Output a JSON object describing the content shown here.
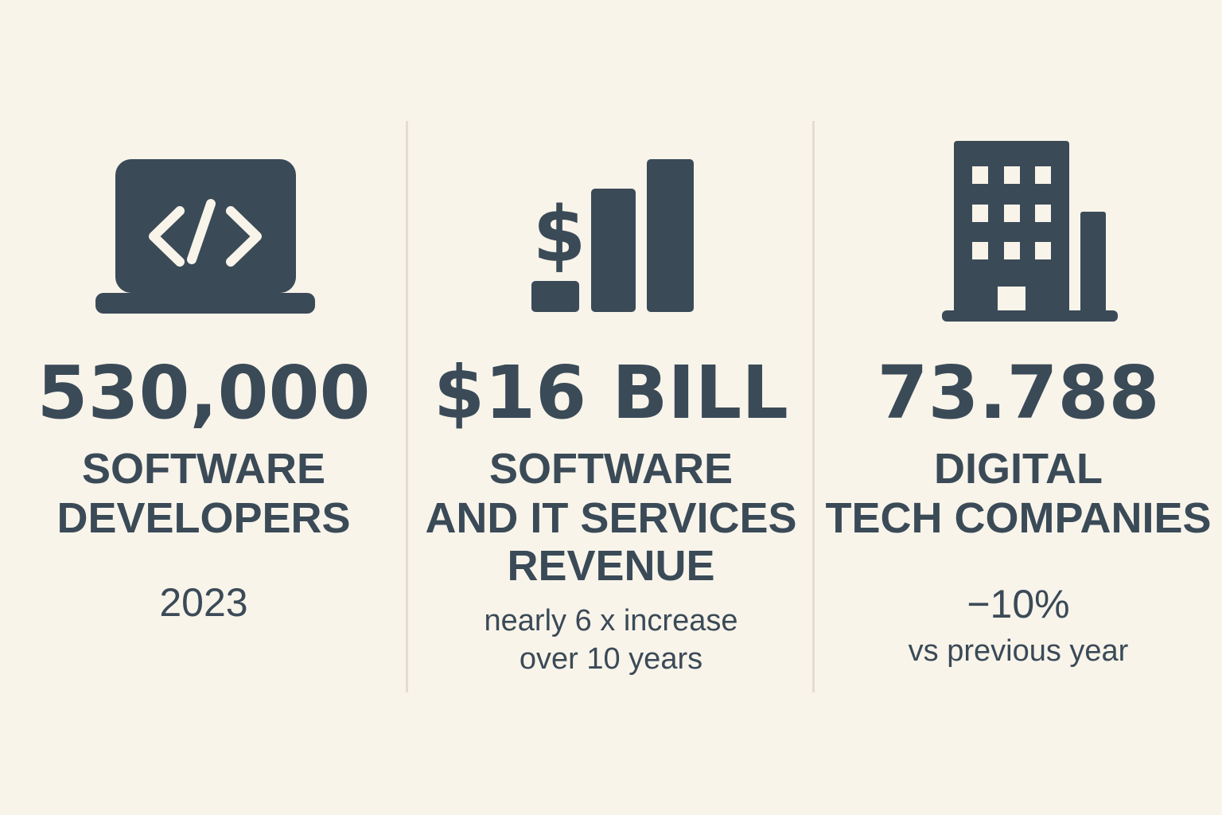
{
  "colors": {
    "background": "#f8f4ea",
    "text": "#3b4a57",
    "icon": "#3b4a57",
    "divider": "#e3ddd1"
  },
  "stats": [
    {
      "icon": "laptop-code-icon",
      "value": "530,000",
      "label_lines": [
        "SOFTWARE",
        "DEVELOPERS"
      ],
      "sub_lines": [
        "2023"
      ]
    },
    {
      "icon": "dollar-bar-chart-icon",
      "value": "$16 BILL",
      "label_lines": [
        "SOFTWARE",
        "AND IT SERVICES",
        "REVENUE"
      ],
      "sub_lines": [
        "nearly 6 x increase",
        "over 10 years"
      ]
    },
    {
      "icon": "office-building-icon",
      "value": "73.788",
      "label_lines": [
        "DIGITAL",
        "TECH COMPANIES"
      ],
      "sub_lines": [
        "−10%",
        "vs previous year"
      ]
    }
  ]
}
